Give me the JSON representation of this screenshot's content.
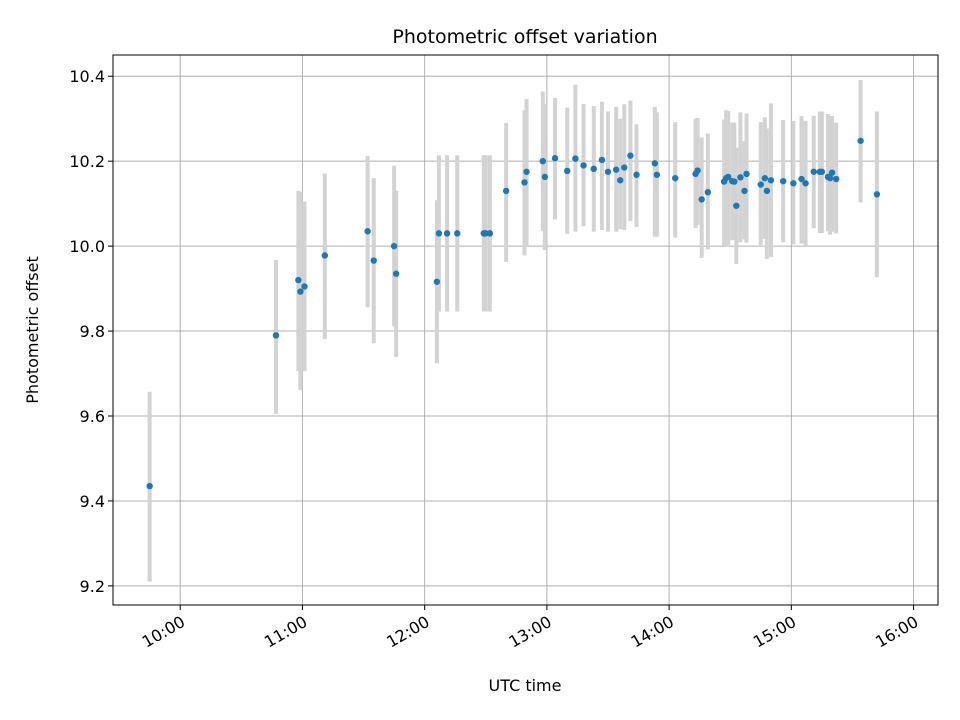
{
  "chart_data": {
    "type": "scatter",
    "title": "Photometric offset variation",
    "xlabel": "UTC time",
    "ylabel": "Photometric offset",
    "x_tick_labels": [
      "10:00",
      "11:00",
      "12:00",
      "13:00",
      "14:00",
      "15:00",
      "16:00"
    ],
    "y_tick_labels": [
      "9.2",
      "9.4",
      "9.6",
      "9.8",
      "10.0",
      "10.2",
      "10.4"
    ],
    "xlim": [
      "09:27",
      "16:12"
    ],
    "ylim": [
      9.155,
      10.45
    ],
    "grid": true,
    "colors": {
      "points": "#1f77b4",
      "error_bars": "#d3d3d3",
      "grid": "#b0b0b0"
    },
    "series": [
      {
        "x_time": [
          "09:45",
          "10:47",
          "10:58",
          "10:59",
          "11:01",
          "11:11",
          "11:32",
          "11:35",
          "11:45",
          "11:46",
          "12:06",
          "12:07",
          "12:11",
          "12:16",
          "12:29",
          "12:30",
          "12:32",
          "12:40",
          "12:49",
          "12:50",
          "12:58",
          "12:59",
          "13:04",
          "13:10",
          "13:14",
          "13:18",
          "13:23",
          "13:27",
          "13:30",
          "13:34",
          "13:36",
          "13:38",
          "13:41",
          "13:44",
          "13:53",
          "13:54",
          "14:03",
          "14:13",
          "14:14",
          "14:16",
          "14:19",
          "14:27",
          "14:28",
          "14:29",
          "14:31",
          "14:32",
          "14:33",
          "14:35",
          "14:37",
          "14:38",
          "14:45",
          "14:47",
          "14:48",
          "14:50",
          "14:56",
          "15:01",
          "15:05",
          "15:07",
          "15:11",
          "15:14",
          "15:15",
          "15:18",
          "15:19",
          "15:20",
          "15:22",
          "15:34",
          "15:42"
        ],
        "y": [
          9.435,
          9.79,
          9.92,
          9.893,
          9.905,
          9.978,
          10.035,
          9.966,
          10.0,
          9.935,
          9.916,
          10.03,
          10.03,
          10.03,
          10.03,
          10.03,
          10.03,
          10.13,
          10.15,
          10.175,
          10.2,
          10.163,
          10.207,
          10.177,
          10.206,
          10.19,
          10.182,
          10.203,
          10.175,
          10.18,
          10.155,
          10.185,
          10.213,
          10.168,
          10.195,
          10.168,
          10.16,
          10.17,
          10.178,
          10.11,
          10.127,
          10.152,
          10.16,
          10.163,
          10.153,
          10.152,
          10.095,
          10.162,
          10.13,
          10.17,
          10.145,
          10.16,
          10.13,
          10.155,
          10.153,
          10.148,
          10.158,
          10.148,
          10.175,
          10.175,
          10.175,
          10.163,
          10.16,
          10.173,
          10.158,
          10.248,
          10.122
        ],
        "err_low": [
          9.21,
          9.605,
          9.706,
          9.661,
          9.706,
          9.781,
          9.856,
          9.771,
          9.811,
          9.739,
          9.724,
          9.846,
          9.846,
          9.846,
          9.846,
          9.846,
          9.846,
          9.963,
          9.978,
          10.0,
          10.036,
          9.991,
          10.063,
          10.029,
          10.034,
          10.047,
          10.034,
          10.038,
          10.034,
          10.034,
          10.04,
          10.038,
          10.059,
          10.045,
          10.022,
          10.022,
          10.02,
          10.043,
          10.05,
          9.972,
          9.992,
          10.001,
          10.0,
          10.003,
          10.014,
          10.017,
          9.958,
          10.009,
          10.016,
          10.008,
          10.003,
          10.017,
          9.97,
          9.974,
          10.009,
          10.004,
          10.006,
          10.0,
          10.042,
          10.031,
          10.031,
          10.035,
          10.027,
          10.034,
          10.03,
          10.103,
          9.927
        ],
        "err_high": [
          9.657,
          9.967,
          10.13,
          10.127,
          10.105,
          10.171,
          10.212,
          10.16,
          10.189,
          10.13,
          10.108,
          10.214,
          10.214,
          10.214,
          10.214,
          10.214,
          10.214,
          10.29,
          10.32,
          10.346,
          10.364,
          10.335,
          10.349,
          10.326,
          10.38,
          10.335,
          10.33,
          10.34,
          10.317,
          10.328,
          10.3,
          10.334,
          10.343,
          10.287,
          10.328,
          10.315,
          10.292,
          10.3,
          10.302,
          10.256,
          10.265,
          10.298,
          10.32,
          10.318,
          10.291,
          10.291,
          10.232,
          10.315,
          10.247,
          10.312,
          10.292,
          10.303,
          10.277,
          10.336,
          10.297,
          10.295,
          10.306,
          10.295,
          10.307,
          10.317,
          10.317,
          10.311,
          10.306,
          10.306,
          10.291,
          10.391,
          10.317
        ]
      }
    ]
  }
}
